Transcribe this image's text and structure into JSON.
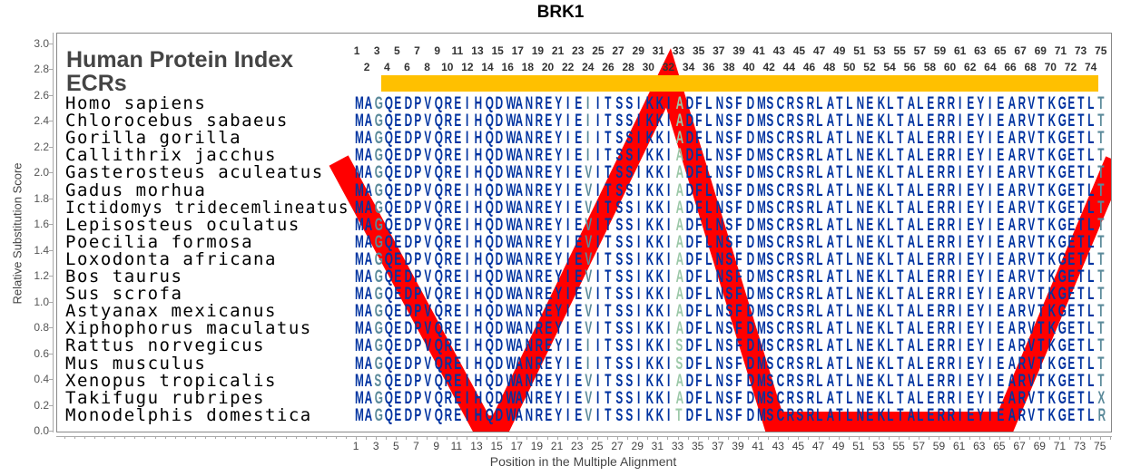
{
  "chart_data": {
    "type": "line",
    "title": "BRK1",
    "xlabel": "Position in the Multiple Alignment",
    "ylabel": "Relative Substitution Score",
    "xlim": [
      -28.8,
      76.2
    ],
    "ylim": [
      0,
      3.08
    ],
    "yticks": [
      "0.0",
      "0.2",
      "0.4",
      "0.6",
      "0.8",
      "1.0",
      "1.2",
      "1.4",
      "1.6",
      "1.8",
      "2.0",
      "2.2",
      "2.4",
      "2.6",
      "2.8",
      "3.0"
    ],
    "series": [
      {
        "name": "substitution score",
        "color": "#ff0000",
        "x": [
          -0.8,
          13.5,
          15.2,
          32,
          42.5,
          65.5,
          76.5
        ],
        "y": [
          2.1,
          0.04,
          0.04,
          2.74,
          0.07,
          0.07,
          2.1
        ]
      }
    ],
    "legend": "none",
    "grid": false
  },
  "annotations": {
    "line1": "Human Protein Index",
    "line2": "ECRs"
  },
  "alignment": {
    "length": 75,
    "default_color": "#0033a0",
    "ecr_bar_color": "#ffc000",
    "column_colors": {
      "3": "#5b8a9a",
      "24": "#5b8a9a",
      "33": "#9cc8a8",
      "75": "#5b8a9a"
    },
    "rows": [
      {
        "species": "Homo sapiens",
        "seq": "MAGQEDPVQREIHQDWANREYIEIITSSIKKIADFLNSFDMSCRSRLATLNEKLTALERRIEYIEARVTKGETLT"
      },
      {
        "species": "Chlorocebus sabaeus",
        "seq": "MAGQEDPVQREIHQDWANREYIEIITSSIKKIADFLNSFDMSCRSRLATLNEKLTALERRIEYIEARVTKGETLT"
      },
      {
        "species": "Gorilla gorilla",
        "seq": "MAGQEDPVQREIHQDWANREYIEIITSSIKKIADFLNSFDMSCRSRLATLNEKLTALERRIEYIEARVTKGETLT"
      },
      {
        "species": "Callithrix jacchus",
        "seq": "MAGQEDPVQREIHQDWANREYIEIITSSIKKIADFLNSFDMSCRSRLATLNEKLTALERRIEYIEARVTKGETLT"
      },
      {
        "species": "Gasterosteus aculeatus",
        "seq": "MAGQEDPVQREIHQDWANREYIEVITSSIKKIADFLNSFDMSCRSRLATLNEKLTALERRIEYIEARVTKGETLT"
      },
      {
        "species": "Gadus morhua",
        "seq": "MAGQEDPVQREIHQDWANREYIEVITSSIKKIADFLNSFDMSCRSRLATLNEKLTALERRIEYIEARVTKGETLT"
      },
      {
        "species": "Ictidomys tridecemlineatus",
        "seq": "MAGQEDPVQREIHQDWANREYIEVITSSIKKIADFLNSFDMSCRSRLATLNEKLTALERRIEYIEARVTKGETLT"
      },
      {
        "species": "Lepisosteus oculatus",
        "seq": "MAGQEDPVQREIHQDWANREYIEVITSSIKKIADFLNSFDMSCRSRLATLNEKLTALERRIEYIEARVTKGETLT"
      },
      {
        "species": "Poecilia formosa",
        "seq": "MAGQEDPVQREIHQDWANREYIEVITSSIKKIADFLNSFDMSCRSRLATLNEKLTALERRIEYIEARVTKGETLT"
      },
      {
        "species": "Loxodonta africana",
        "seq": "MAGQEDPVQREIHQDWANREYIEVITSSIKKIADFLNSFDMSCRSRLATLNEKLTALERRIEYIEARVTKGETLT"
      },
      {
        "species": "Bos taurus",
        "seq": "MAGQEDPVQREIHQDWANREYIEVITSSIKKIADFLNSFDMSCRSRLATLNEKLTALERRIEYIEARVTKGETLT"
      },
      {
        "species": "Sus scrofa",
        "seq": "MAGQEDPVQREIHQDWANREYIEVITSSIKKIADFLNSFDMSCRSRLATLNEKLTALERRIEYIEARVTKGETLT"
      },
      {
        "species": "Astyanax mexicanus",
        "seq": "MAGQEDPVQREIHQDWANREYIEVITSSIKKIADFLNSFDMSCRSRLATLNEKLTALERRIEYIEARVTKGETLT"
      },
      {
        "species": "Xiphophorus maculatus",
        "seq": "MAGQEDPVQREIHQDWANREYIEVITSSIKKIADFLNSFDMSCRSRLATLNEKLTALERRIEYIEARVTKGETLT"
      },
      {
        "species": "Rattus norvegicus",
        "seq": "MAGQEDPVQREIHQDWANREYIEIITSSIKKISDFLNSFDMSCRSRLATLNEKLTALERRIEYIEARVTKGETLT"
      },
      {
        "species": "Mus musculus",
        "seq": "MAGQEDPVQREIHQDWANREYIEIITSSIKKISDFLNSFDMSCRSRLATLNEKLTALERRIEYIEARVTKGETLT"
      },
      {
        "species": "Xenopus tropicalis",
        "seq": "MASQEDPVQREIHQDWANREYIEVITSSIKKIADFLNSFDMSCRSRLATLNEKLTALERRIEYIEARVTKGETLT"
      },
      {
        "species": "Takifugu rubripes",
        "seq": "MAGQEDPVQREIHQDWANREYIEVITSSIKKIADFLNSFDMSCRSRLATLNEKLTALERRIEYIEARVTKGETLX"
      },
      {
        "species": "Monodelphis domestica",
        "seq": "MAGQEDPVQREIHQDWANREYIEVITSSIKKITDFLNSFDMSCRSRLATLNEKLTALERRIEYIEARVTKGETLR"
      }
    ]
  }
}
